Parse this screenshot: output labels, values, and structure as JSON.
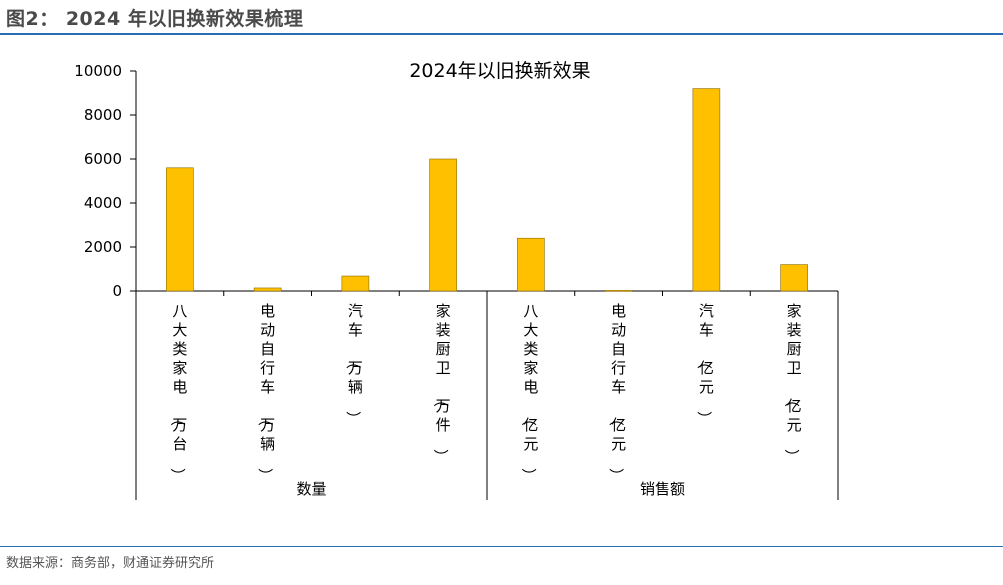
{
  "figure": {
    "title": "图2：  2024 年以旧换新效果梳理",
    "source": "数据来源：商务部，财通证券研究所"
  },
  "chart_data": {
    "type": "bar",
    "title": "2024年以旧换新效果",
    "xlabel": "",
    "ylabel": "",
    "ylim": [
      0,
      10000
    ],
    "yticks": [
      0,
      2000,
      4000,
      6000,
      8000,
      10000
    ],
    "grid": false,
    "bar_color": "#FFC000",
    "categories": [
      "八大类家电（万台）",
      "电动自行车（万辆）",
      "汽车（万辆）",
      "家装厨卫（万件）",
      "八大类家电（亿元）",
      "电动自行车（亿元）",
      "汽车（亿元）",
      "家装厨卫（亿元）"
    ],
    "values": [
      5600,
      138,
      680,
      6000,
      2400,
      30,
      9200,
      1200
    ],
    "groups": [
      {
        "label": "数量",
        "categories": [
          0,
          1,
          2,
          3
        ]
      },
      {
        "label": "销售额",
        "categories": [
          4,
          5,
          6,
          7
        ]
      }
    ]
  }
}
